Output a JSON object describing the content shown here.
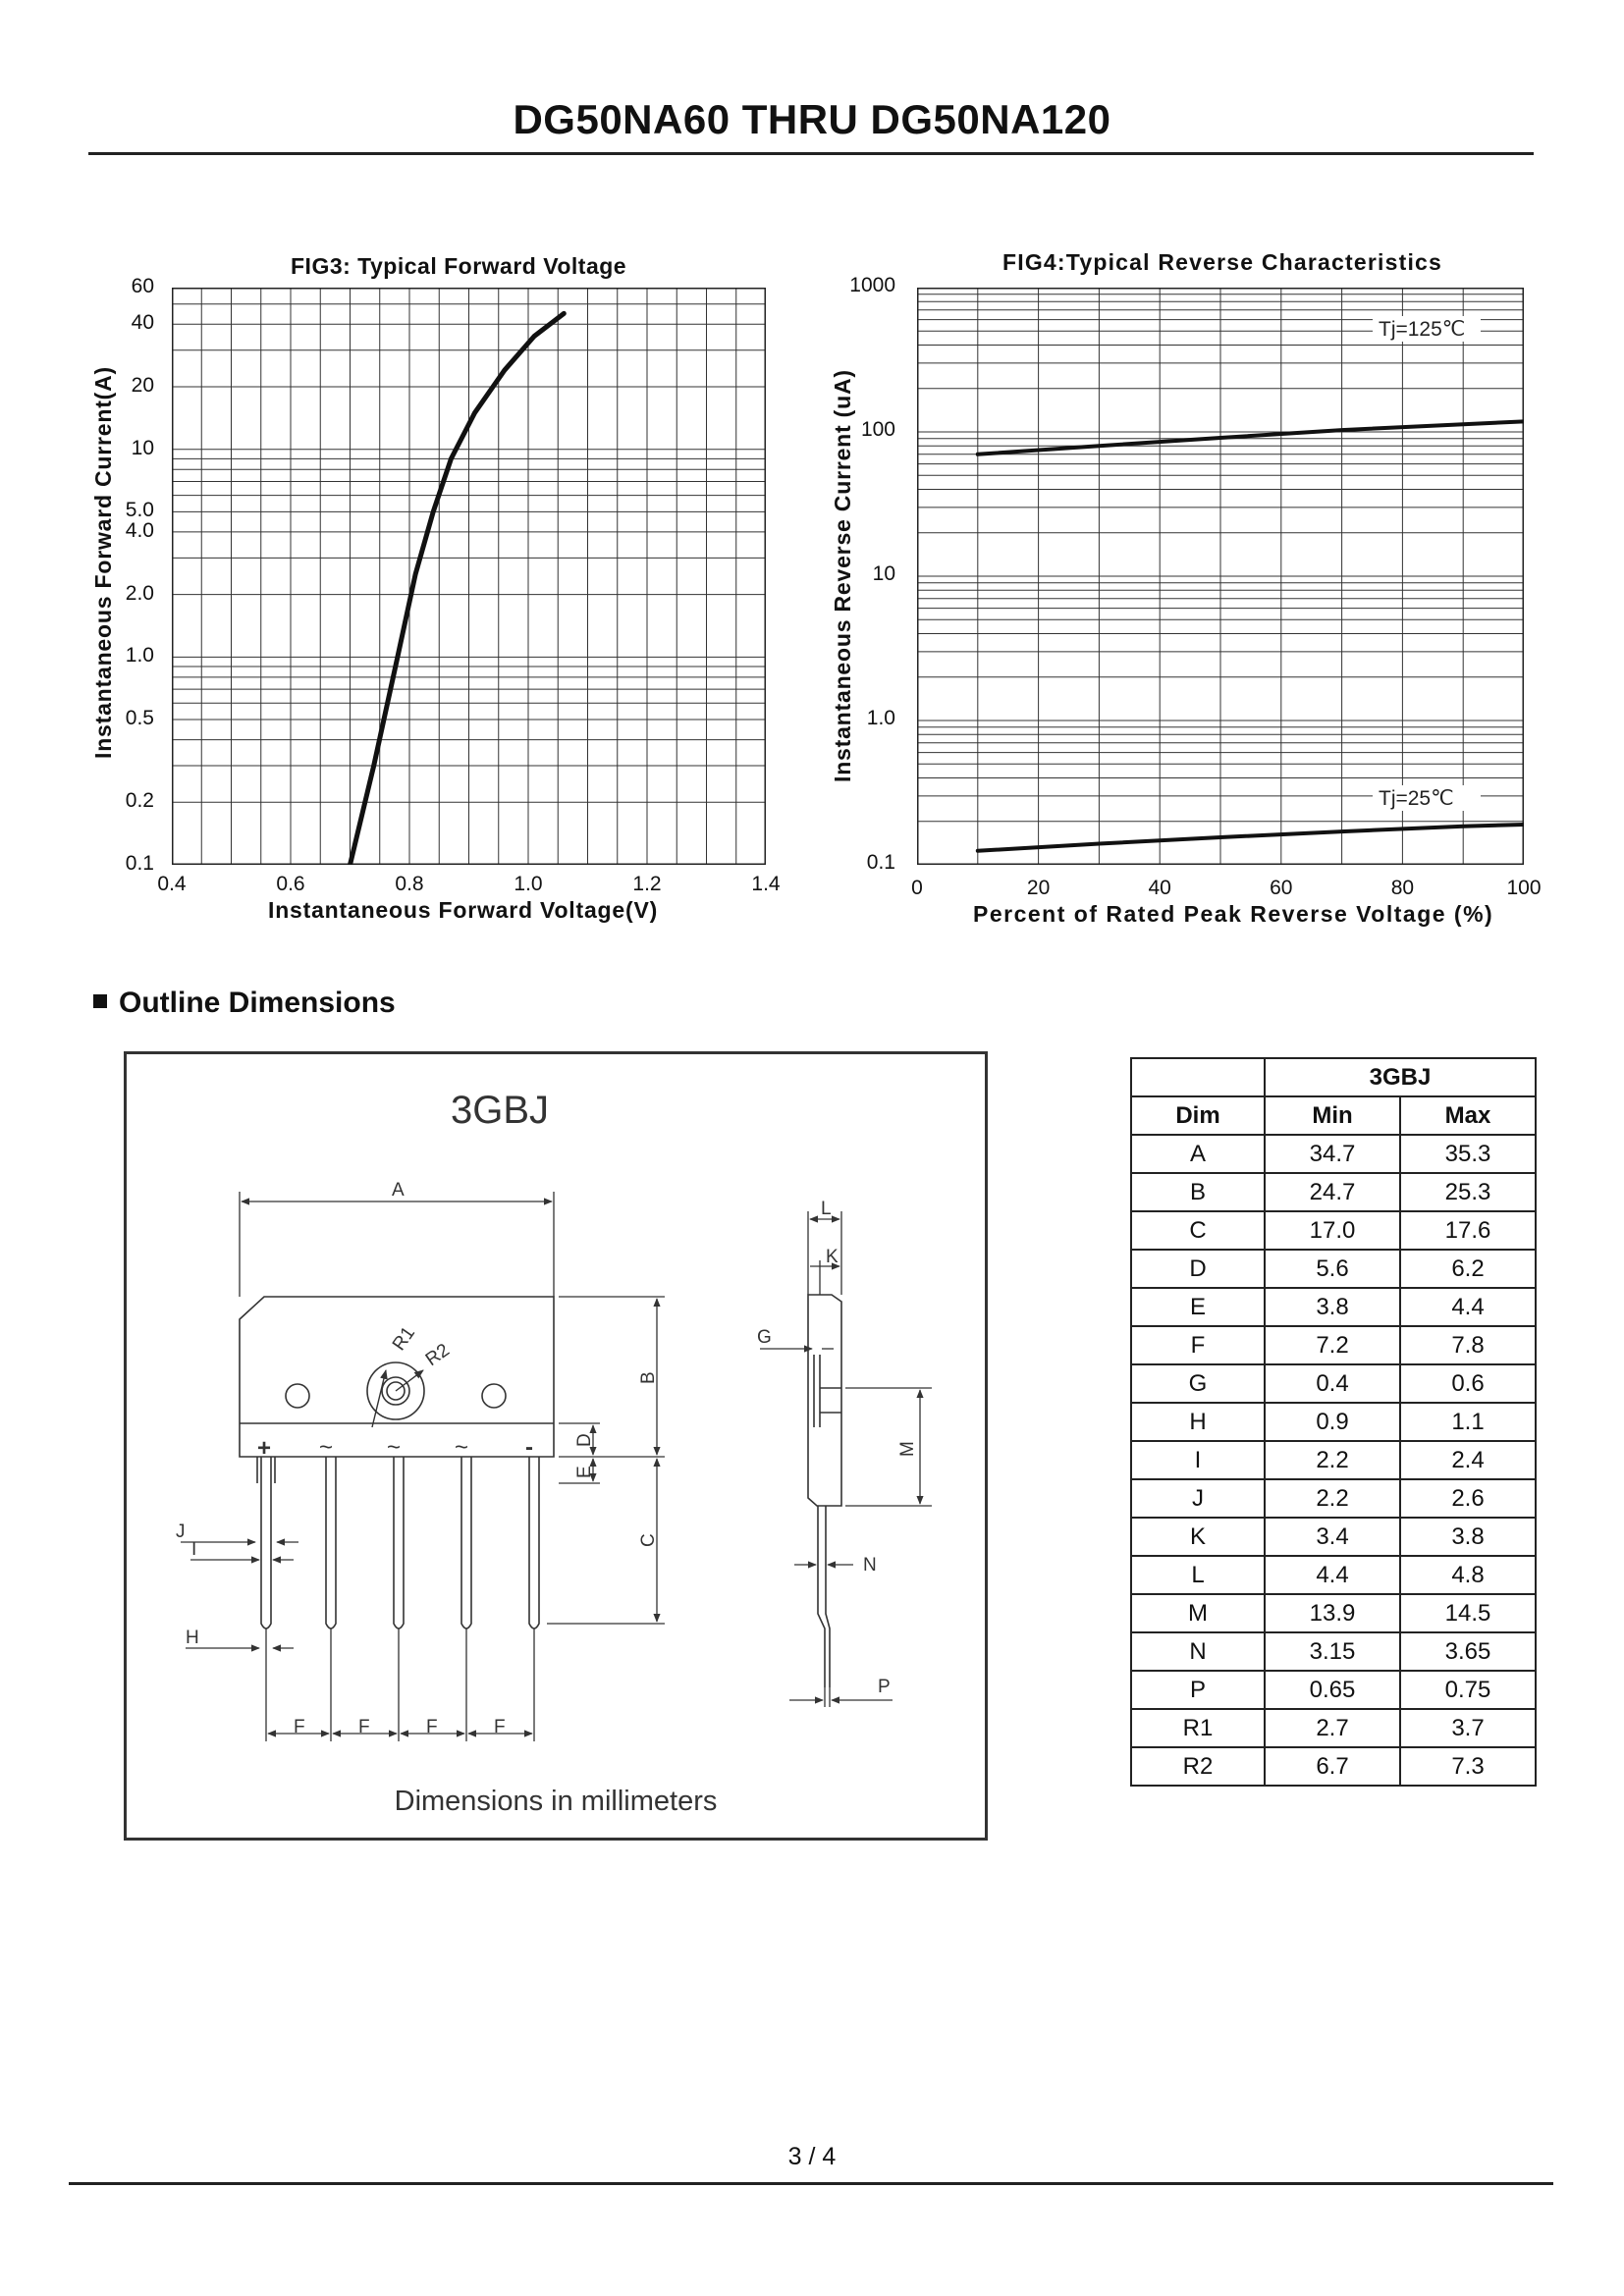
{
  "document": {
    "title": "DG50NA60 THRU DG50NA120",
    "page_number": "3 / 4"
  },
  "fig3": {
    "title": "FIG3: Typical Forward Voltage",
    "xlabel": "Instantaneous Forward Voltage(V)",
    "ylabel": "Instantaneous Forward Current(A)",
    "x_ticks": [
      "0.4",
      "0.6",
      "0.8",
      "1.0",
      "1.2",
      "1.4"
    ],
    "y_ticks": [
      "0.1",
      "0.2",
      "0.5",
      "1.0",
      "2.0",
      "4.0",
      "5.0",
      "10",
      "20",
      "40",
      "60"
    ]
  },
  "fig4": {
    "title": "FIG4:Typical Reverse Characteristics",
    "xlabel": "Percent of Rated Peak Reverse Voltage (%)",
    "ylabel": "Instantaneous Reverse Current (uA)",
    "x_ticks": [
      "0",
      "20",
      "40",
      "60",
      "80",
      "100"
    ],
    "y_ticks": [
      "0.1",
      "1.0",
      "10",
      "100",
      "1000"
    ],
    "series_labels": [
      "Tj=125℃",
      "Tj=25℃"
    ]
  },
  "chart_data": [
    {
      "type": "line",
      "title": "FIG3: Typical Forward Voltage",
      "xlabel": "Instantaneous Forward Voltage(V)",
      "ylabel": "Instantaneous Forward Current(A)",
      "xlim": [
        0.4,
        1.4
      ],
      "ylim": [
        0.1,
        60
      ],
      "yscale": "log",
      "grid": true,
      "series": [
        {
          "x": [
            0.7,
            0.74,
            0.78,
            0.81,
            0.84,
            0.87,
            0.91,
            0.96,
            1.01,
            1.06
          ],
          "y": [
            0.1,
            0.3,
            1.0,
            2.5,
            5.0,
            9.0,
            15,
            24,
            35,
            45
          ]
        }
      ]
    },
    {
      "type": "line",
      "title": "FIG4:Typical Reverse Characteristics",
      "xlabel": "Percent of Rated Peak Reverse Voltage (%)",
      "ylabel": "Instantaneous Reverse Current (uA)",
      "xlim": [
        0,
        100
      ],
      "ylim": [
        0.1,
        1000
      ],
      "yscale": "log",
      "grid": true,
      "series": [
        {
          "name": "Tj=125℃",
          "x": [
            10,
            30,
            50,
            70,
            90,
            100
          ],
          "y": [
            70,
            80,
            91,
            103,
            113,
            118
          ]
        },
        {
          "name": "Tj=25℃",
          "x": [
            10,
            30,
            50,
            70,
            90,
            100
          ],
          "y": [
            0.125,
            0.14,
            0.155,
            0.17,
            0.185,
            0.19
          ]
        }
      ]
    }
  ],
  "outline": {
    "heading": "Outline Dimensions",
    "package_name": "3GBJ",
    "caption": "Dimensions in millimeters",
    "dim_letters": {
      "A": "A",
      "B": "B",
      "C": "C",
      "D": "D",
      "E": "E",
      "F": "F",
      "G": "G",
      "H": "H",
      "I": "I",
      "J": "J",
      "K": "K",
      "L": "L",
      "M": "M",
      "N": "N",
      "P": "P",
      "R1": "R1",
      "R2": "R2"
    },
    "pin_marks": [
      "+",
      "~",
      "~",
      "~",
      "-"
    ]
  },
  "table": {
    "group_header": "3GBJ",
    "columns": [
      "Dim",
      "Min",
      "Max"
    ],
    "rows": [
      [
        "A",
        "34.7",
        "35.3"
      ],
      [
        "B",
        "24.7",
        "25.3"
      ],
      [
        "C",
        "17.0",
        "17.6"
      ],
      [
        "D",
        "5.6",
        "6.2"
      ],
      [
        "E",
        "3.8",
        "4.4"
      ],
      [
        "F",
        "7.2",
        "7.8"
      ],
      [
        "G",
        "0.4",
        "0.6"
      ],
      [
        "H",
        "0.9",
        "1.1"
      ],
      [
        "I",
        "2.2",
        "2.4"
      ],
      [
        "J",
        "2.2",
        "2.6"
      ],
      [
        "K",
        "3.4",
        "3.8"
      ],
      [
        "L",
        "4.4",
        "4.8"
      ],
      [
        "M",
        "13.9",
        "14.5"
      ],
      [
        "N",
        "3.15",
        "3.65"
      ],
      [
        "P",
        "0.65",
        "0.75"
      ],
      [
        "R1",
        "2.7",
        "3.7"
      ],
      [
        "R2",
        "6.7",
        "7.3"
      ]
    ]
  }
}
